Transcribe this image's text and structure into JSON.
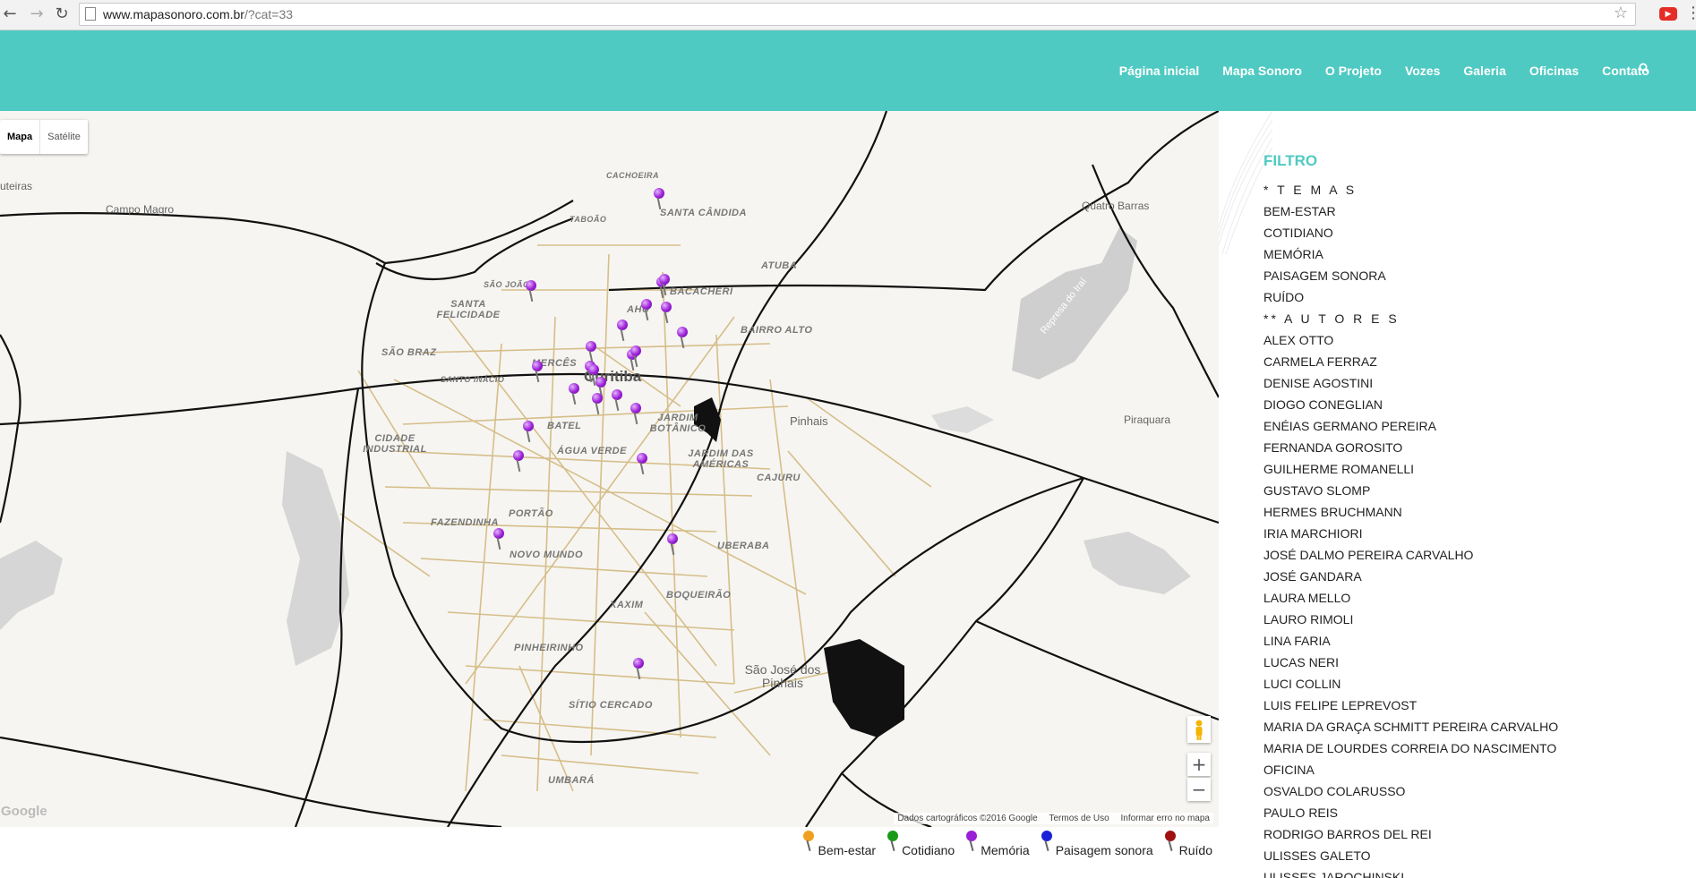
{
  "browser": {
    "url_host": "www.mapasonoro.com.br",
    "url_rest": "/?cat=33",
    "back_icon": "arrow-left-icon",
    "forward_icon": "arrow-right-icon",
    "reload_icon": "reload-icon",
    "bookmark_icon": "star-icon",
    "extension_icon": "youtube-icon"
  },
  "header": {
    "bg_color": "#4fcac2",
    "nav": [
      "Página inicial",
      "Mapa Sonoro",
      "O Projeto",
      "Vozes",
      "Galeria",
      "Oficinas",
      "Contato"
    ],
    "search_icon": "search-icon"
  },
  "map": {
    "type_buttons": [
      "Mapa",
      "Satélite"
    ],
    "labels": {
      "edge_left": "uteiras",
      "campo_magro": "Campo Magro",
      "cachoeira": "CACHOEIRA",
      "taboao": "TABOÃO",
      "santa_candida": "SANTA CÂNDIDA",
      "atuba": "ATUBA",
      "bacacheri": "BACACHERI",
      "sao_joao": "SÃO JOÃO",
      "santa_felicidade": "SANTA FELICIDADE",
      "ahu": "AHÚ",
      "bairro_alto": "BAIRRO ALTO",
      "quatro_barras": "Quatro Barras",
      "sao_braz": "SÃO BRAZ",
      "merces": "MERCÊS",
      "santo_inacio": "SANTO INÁCIO",
      "curitiba": "Curitiba",
      "pinhais": "Pinhais",
      "piraquara": "Piraquara",
      "represa": "Represa do Iraí",
      "cidade_industrial": "CIDADE INDUSTRIAL",
      "batel": "BATEL",
      "agua_verde": "ÁGUA VERDE",
      "jardim_botanico": "JARDIM BOTÂNICO",
      "jardim_das_americas": "JARDIM DAS AMÉRICAS",
      "cajuru": "CAJURU",
      "portao": "PORTÃO",
      "fazendinha": "FAZENDINHA",
      "novo_mundo": "NOVO MUNDO",
      "uberaba": "UBERABA",
      "xaxim": "XAXIM",
      "boqueirao": "BOQUEIRÃO",
      "pinheirinho": "PINHEIRINHO",
      "sao_jose": "São José dos Pinhais",
      "sitio_cercado": "SÍTIO CERCADO",
      "umbara": "UMBARÁ"
    },
    "pin_color": "#9a1fd6",
    "pins_visible": 26,
    "controls": {
      "zoom_in": "+",
      "zoom_out": "−",
      "pegman_icon": "pegman-icon"
    },
    "google_logo": "Google",
    "attribution": [
      "Dados cartográficos ©2016 Google",
      "Termos de Uso",
      "Informar erro no mapa"
    ]
  },
  "legend": [
    {
      "label": "Bem-estar",
      "color": "#f0a020"
    },
    {
      "label": "Cotidiano",
      "color": "#1a9a1a"
    },
    {
      "label": "Memória",
      "color": "#9a1fd6"
    },
    {
      "label": "Paisagem sonora",
      "color": "#1a22d6"
    },
    {
      "label": "Ruído",
      "color": "#a01010"
    }
  ],
  "sidebar": {
    "title": "FILTRO",
    "title_color": "#4fcac2",
    "items": [
      "* T E M A S",
      "BEM-ESTAR",
      "COTIDIANO",
      "MEMÓRIA",
      "PAISAGEM SONORA",
      "RUÍDO",
      "** A U T O R E S",
      "ALEX OTTO",
      "CARMELA FERRAZ",
      "DENISE AGOSTINI",
      "DIOGO CONEGLIAN",
      "ENÉIAS GERMANO PEREIRA",
      "FERNANDA GOROSITO",
      "GUILHERME ROMANELLI",
      "GUSTAVO SLOMP",
      "HERMES BRUCHMANN",
      "IRIA MARCHIORI",
      "JOSÉ DALMO PEREIRA CARVALHO",
      "JOSÉ GANDARA",
      "LAURA MELLO",
      "LAURO RIMOLI",
      "LINA FARIA",
      "LUCAS NERI",
      "LUCI COLLIN",
      "LUIS FELIPE LEPREVOST",
      "MARIA DA GRAÇA SCHMITT PEREIRA CARVALHO",
      "MARIA DE LOURDES CORREIA DO NASCIMENTO",
      "OFICINA",
      "OSVALDO COLARUSSO",
      "PAULO REIS",
      "RODRIGO BARROS DEL REI",
      "ULISSES GALETO",
      "ULISSES JAROCHINSKI"
    ]
  }
}
